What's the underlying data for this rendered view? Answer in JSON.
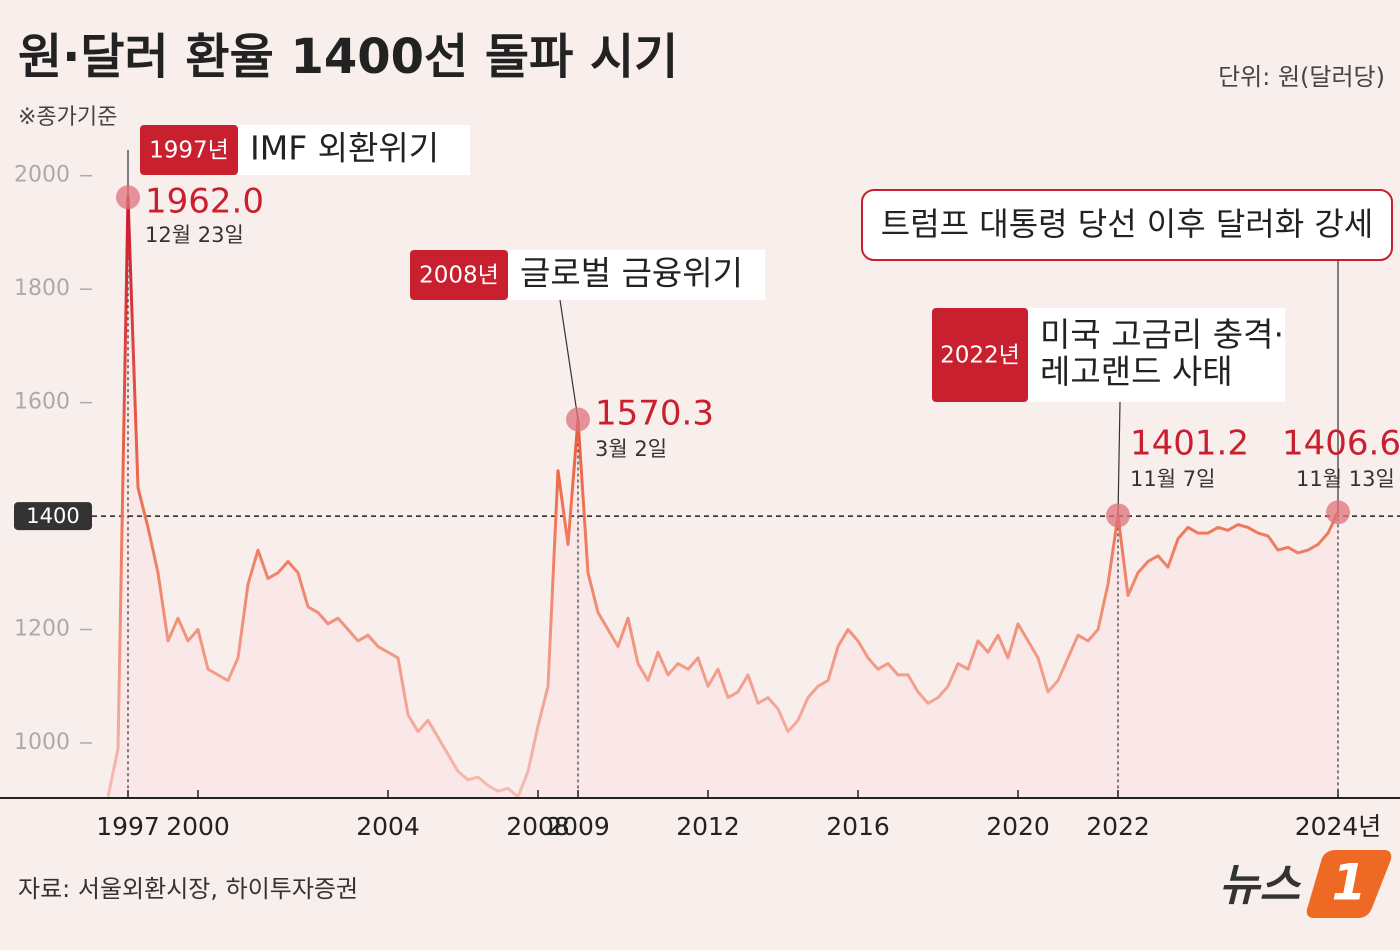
{
  "chart_data": {
    "type": "line",
    "title": "원·달러 환율 1400선 돌파 시기",
    "subtitle": "※종가기준",
    "unit": "단위: 원(달러당)",
    "source": "자료: 서울외환시장, 하이투자증권",
    "logo": {
      "text": "뉴스",
      "mark": "1"
    },
    "categories": [
      null,
      null,
      "1997",
      null,
      null,
      null,
      null,
      null,
      null,
      "2000",
      null,
      null,
      null,
      null,
      null,
      null,
      null,
      null,
      null,
      null,
      null,
      null,
      null,
      null,
      null,
      null,
      null,
      null,
      "2004",
      null,
      null,
      null,
      null,
      null,
      null,
      null,
      null,
      null,
      null,
      null,
      null,
      null,
      null,
      "2008",
      null,
      null,
      null,
      "2009",
      null,
      null,
      null,
      null,
      null,
      null,
      null,
      null,
      null,
      null,
      null,
      null,
      "2012",
      null,
      null,
      null,
      null,
      null,
      null,
      null,
      null,
      null,
      null,
      null,
      null,
      null,
      null,
      "2016",
      null,
      null,
      null,
      null,
      null,
      null,
      null,
      null,
      null,
      null,
      null,
      null,
      null,
      null,
      null,
      "2020",
      null,
      null,
      null,
      null,
      null,
      null,
      null,
      null,
      null,
      "2022",
      null,
      null,
      null,
      null,
      null,
      null,
      null,
      null,
      null,
      null,
      null,
      null,
      null,
      null,
      null,
      null,
      null,
      null,
      null,
      null,
      null,
      "2024년"
    ],
    "values": [
      905,
      990,
      1962,
      1450,
      1380,
      1300,
      1180,
      1220,
      1180,
      1200,
      1130,
      1120,
      1110,
      1150,
      1280,
      1340,
      1290,
      1300,
      1320,
      1300,
      1240,
      1230,
      1210,
      1220,
      1200,
      1180,
      1190,
      1170,
      1160,
      1150,
      1050,
      1020,
      1040,
      1010,
      980,
      950,
      935,
      940,
      925,
      915,
      920,
      905,
      950,
      1030,
      1100,
      1480,
      1350,
      1570.3,
      1300,
      1230,
      1200,
      1170,
      1220,
      1140,
      1110,
      1160,
      1120,
      1140,
      1130,
      1150,
      1100,
      1130,
      1080,
      1090,
      1120,
      1070,
      1080,
      1060,
      1020,
      1040,
      1080,
      1100,
      1110,
      1170,
      1200,
      1180,
      1150,
      1130,
      1140,
      1120,
      1120,
      1090,
      1070,
      1080,
      1100,
      1140,
      1130,
      1180,
      1160,
      1190,
      1150,
      1210,
      1180,
      1150,
      1090,
      1110,
      1150,
      1190,
      1180,
      1200,
      1280,
      1401.2,
      1260,
      1300,
      1320,
      1330,
      1310,
      1360,
      1380,
      1370,
      1370,
      1380,
      1375,
      1385,
      1380,
      1370,
      1365,
      1340,
      1345,
      1335,
      1340,
      1350,
      1370,
      1406.6
    ],
    "value_labels": [
      null,
      null,
      "1962.0",
      null,
      null,
      null,
      null,
      null,
      null,
      null,
      null,
      null,
      null,
      null,
      null,
      null,
      null,
      null,
      null,
      null,
      null,
      null,
      null,
      null,
      null,
      null,
      null,
      null,
      null,
      null,
      null,
      null,
      null,
      null,
      null,
      null,
      null,
      null,
      null,
      null,
      null,
      null,
      null,
      null,
      null,
      null,
      null,
      "1570.3",
      null,
      null,
      null,
      null,
      null,
      null,
      null,
      null,
      null,
      null,
      null,
      null,
      null,
      null,
      null,
      null,
      null,
      null,
      null,
      null,
      null,
      null,
      null,
      null,
      null,
      null,
      null,
      null,
      null,
      null,
      null,
      null,
      null,
      null,
      null,
      null,
      null,
      null,
      null,
      null,
      null,
      null,
      null,
      null,
      null,
      null,
      null,
      null,
      null,
      null,
      null,
      null,
      null,
      "1401.2",
      null,
      null,
      null,
      null,
      null,
      null,
      null,
      null,
      null,
      null,
      null,
      null,
      null,
      null,
      null,
      null,
      null,
      null,
      null,
      null,
      null,
      "1406.6"
    ],
    "annotations": [
      {
        "tag": "1997년",
        "text": [
          "IMF 외환위기"
        ],
        "date": "12월 23일"
      },
      {
        "tag": "2008년",
        "text": [
          "글로벌 금융위기"
        ],
        "date": "3월 2일"
      },
      {
        "tag": "2022년",
        "text": [
          "미국 고금리 충격·",
          "레고랜드 사태"
        ],
        "date": "11월 7일"
      },
      {
        "text": [
          "트럼프 대통령 당선 이후 달러화 강세"
        ],
        "date": "11월 13일"
      }
    ],
    "reference_line": {
      "value": 1400,
      "label": "1400"
    },
    "ylim": [
      903,
      2100
    ],
    "yticks": [
      1000,
      1200,
      1600,
      1800,
      2000
    ],
    "gradient_colors": [
      "#c8102e",
      "#ec6f4c",
      "#f6bcb4"
    ],
    "fill_color": "#fbe6e6",
    "accent_color": "#c8202f"
  }
}
